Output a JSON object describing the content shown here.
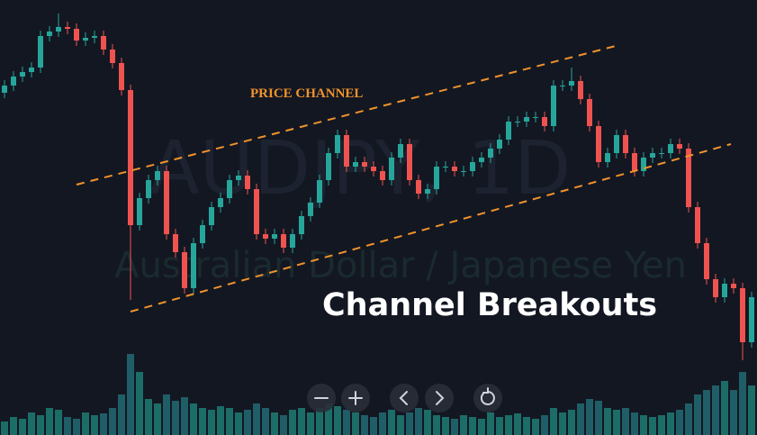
{
  "chart_data": {
    "type": "candlestick",
    "title": "Channel Breakouts",
    "annotation": "PRICE CHANNEL",
    "watermark": "AUDJPY, 1D",
    "watermark_subtitle": "Australian Dollar / Japanese Yen",
    "up_color": "#26a69a",
    "down_color": "#ef5350",
    "ylim": [
      0,
      483
    ],
    "y2lim": [
      0,
      100
    ],
    "open": [
      380,
      388,
      398,
      403,
      408,
      443,
      448,
      453,
      451,
      438,
      441,
      443,
      428,
      413,
      383,
      233,
      263,
      283,
      293,
      223,
      203,
      163,
      213,
      233,
      253,
      263,
      283,
      288,
      273,
      223,
      218,
      223,
      208,
      223,
      243,
      258,
      283,
      313,
      333,
      298,
      303,
      298,
      293,
      283,
      308,
      323,
      283,
      268,
      273,
      298,
      298,
      293,
      293,
      303,
      308,
      318,
      328,
      348,
      348,
      353,
      353,
      343,
      388,
      388,
      393,
      373,
      343,
      303,
      313,
      333,
      313,
      293,
      308,
      313,
      313,
      323,
      318,
      253,
      213,
      173,
      153,
      168,
      163,
      103
    ],
    "high": [
      394,
      404,
      409,
      414,
      449,
      454,
      468,
      459,
      457,
      447,
      449,
      449,
      434,
      419,
      389,
      269,
      289,
      299,
      299,
      229,
      209,
      219,
      239,
      259,
      269,
      289,
      294,
      294,
      279,
      229,
      229,
      229,
      229,
      249,
      264,
      289,
      319,
      339,
      339,
      309,
      309,
      304,
      299,
      314,
      329,
      329,
      289,
      279,
      304,
      304,
      304,
      299,
      309,
      314,
      324,
      334,
      354,
      354,
      359,
      359,
      359,
      394,
      394,
      408,
      399,
      379,
      349,
      319,
      339,
      339,
      319,
      314,
      319,
      319,
      329,
      329,
      324,
      259,
      219,
      179,
      174,
      174,
      169,
      159
    ],
    "low": [
      374,
      382,
      392,
      397,
      402,
      437,
      442,
      445,
      432,
      432,
      435,
      422,
      407,
      377,
      150,
      227,
      257,
      277,
      217,
      197,
      157,
      157,
      207,
      227,
      247,
      257,
      277,
      267,
      217,
      212,
      212,
      202,
      202,
      217,
      237,
      252,
      277,
      307,
      292,
      292,
      292,
      287,
      277,
      277,
      302,
      277,
      262,
      262,
      267,
      292,
      287,
      287,
      287,
      297,
      302,
      312,
      322,
      342,
      342,
      347,
      337,
      337,
      382,
      382,
      367,
      337,
      297,
      297,
      307,
      307,
      287,
      287,
      302,
      307,
      307,
      312,
      247,
      207,
      167,
      147,
      147,
      157,
      83,
      97
    ],
    "close": [
      388,
      398,
      403,
      408,
      443,
      448,
      453,
      451,
      438,
      441,
      443,
      428,
      413,
      383,
      233,
      263,
      283,
      293,
      223,
      203,
      163,
      213,
      233,
      253,
      263,
      283,
      288,
      273,
      223,
      218,
      223,
      208,
      223,
      243,
      258,
      283,
      313,
      333,
      298,
      303,
      298,
      293,
      283,
      308,
      323,
      283,
      268,
      273,
      298,
      298,
      293,
      293,
      303,
      308,
      318,
      328,
      348,
      348,
      353,
      353,
      343,
      388,
      388,
      393,
      373,
      343,
      303,
      313,
      333,
      313,
      293,
      308,
      313,
      313,
      323,
      318,
      253,
      213,
      173,
      153,
      168,
      163,
      103,
      153
    ],
    "volume": [
      15,
      20,
      18,
      25,
      22,
      30,
      28,
      20,
      18,
      25,
      22,
      24,
      30,
      45,
      90,
      70,
      40,
      35,
      45,
      38,
      42,
      35,
      30,
      28,
      32,
      30,
      25,
      28,
      35,
      30,
      25,
      22,
      28,
      30,
      25,
      30,
      35,
      32,
      28,
      25,
      22,
      20,
      25,
      28,
      22,
      25,
      30,
      28,
      22,
      20,
      18,
      22,
      20,
      18,
      25,
      20,
      22,
      24,
      20,
      18,
      22,
      30,
      25,
      28,
      35,
      40,
      38,
      30,
      28,
      30,
      25,
      22,
      20,
      22,
      25,
      28,
      35,
      45,
      50,
      55,
      60,
      50,
      70,
      55
    ]
  }
}
